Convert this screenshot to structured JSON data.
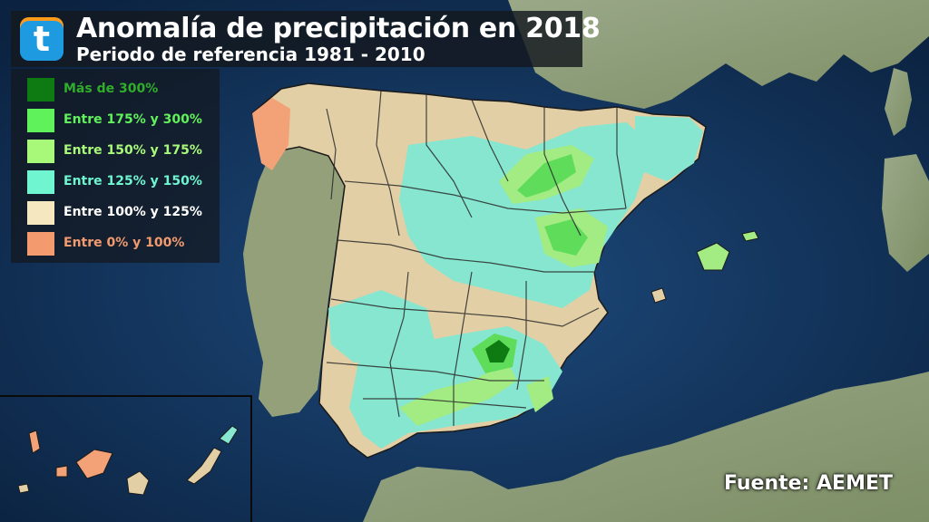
{
  "header": {
    "logo_letter": "t",
    "title": "Anomalía de precipitación en 2018",
    "subtitle": "Periodo de referencia 1981 - 2010"
  },
  "legend": {
    "items": [
      {
        "label": "Más de 300%",
        "color": "#0e7a12"
      },
      {
        "label": "Entre 175% y 300%",
        "color": "#5ff25a"
      },
      {
        "label": "Entre 150% y 175%",
        "color": "#a8f87a"
      },
      {
        "label": "Entre 125% y 150%",
        "color": "#6ff5d0"
      },
      {
        "label": "Entre 100% y 125%",
        "color": "#f5e7bf"
      },
      {
        "label": "Entre 0% y 100%",
        "color": "#f39a6e"
      }
    ]
  },
  "source": "Fuente: AEMET",
  "colors": {
    "sea": "#173d68",
    "land": "#8a9a72",
    "borders": "#2a2a2a"
  }
}
